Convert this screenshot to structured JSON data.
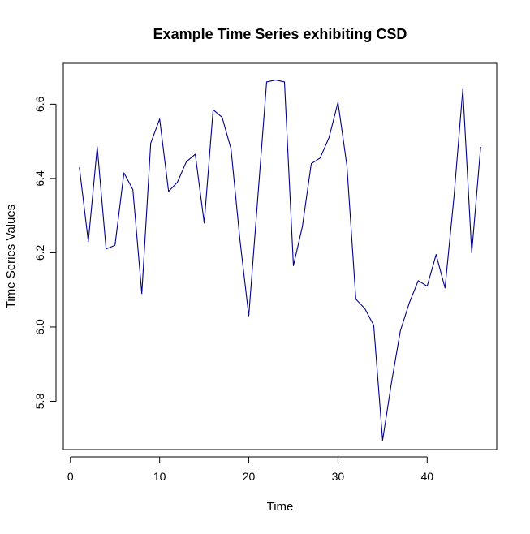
{
  "chart_data": {
    "type": "line",
    "title": "Example Time Series exhibiting CSD",
    "xlabel": "Time",
    "ylabel": "Time Series Values",
    "xlim": [
      -0.8,
      47.8
    ],
    "ylim": [
      5.67,
      6.71
    ],
    "x_ticks": [
      0,
      10,
      20,
      30,
      40
    ],
    "x_tick_labels": [
      "0",
      "10",
      "20",
      "30",
      "40"
    ],
    "y_ticks": [
      5.8,
      6.0,
      6.2,
      6.4,
      6.6
    ],
    "y_tick_labels": [
      "5.8",
      "6.0",
      "6.2",
      "6.4",
      "6.6"
    ],
    "grid": false,
    "line_color": "#00008b",
    "series": [
      {
        "x": [
          1,
          2,
          3,
          4,
          5,
          6,
          7,
          8,
          9,
          10,
          11,
          12,
          13,
          14,
          15,
          16,
          17,
          18,
          19,
          20,
          21,
          22,
          23,
          24,
          25,
          26,
          27,
          28,
          29,
          30,
          31,
          32,
          33,
          34,
          35,
          36,
          37,
          38,
          39,
          40,
          41,
          42,
          43,
          44,
          45,
          46
        ],
        "values": [
          6.43,
          6.23,
          6.485,
          6.21,
          6.22,
          6.415,
          6.37,
          6.09,
          6.495,
          6.56,
          6.365,
          6.39,
          6.445,
          6.465,
          6.28,
          6.585,
          6.565,
          6.48,
          6.235,
          6.03,
          6.345,
          6.66,
          6.665,
          6.66,
          6.165,
          6.27,
          6.44,
          6.455,
          6.51,
          6.605,
          6.435,
          6.075,
          6.05,
          6.005,
          5.695,
          5.85,
          5.99,
          6.065,
          6.125,
          6.11,
          6.195,
          6.105,
          6.35,
          6.64,
          6.2,
          6.485
        ]
      }
    ]
  }
}
